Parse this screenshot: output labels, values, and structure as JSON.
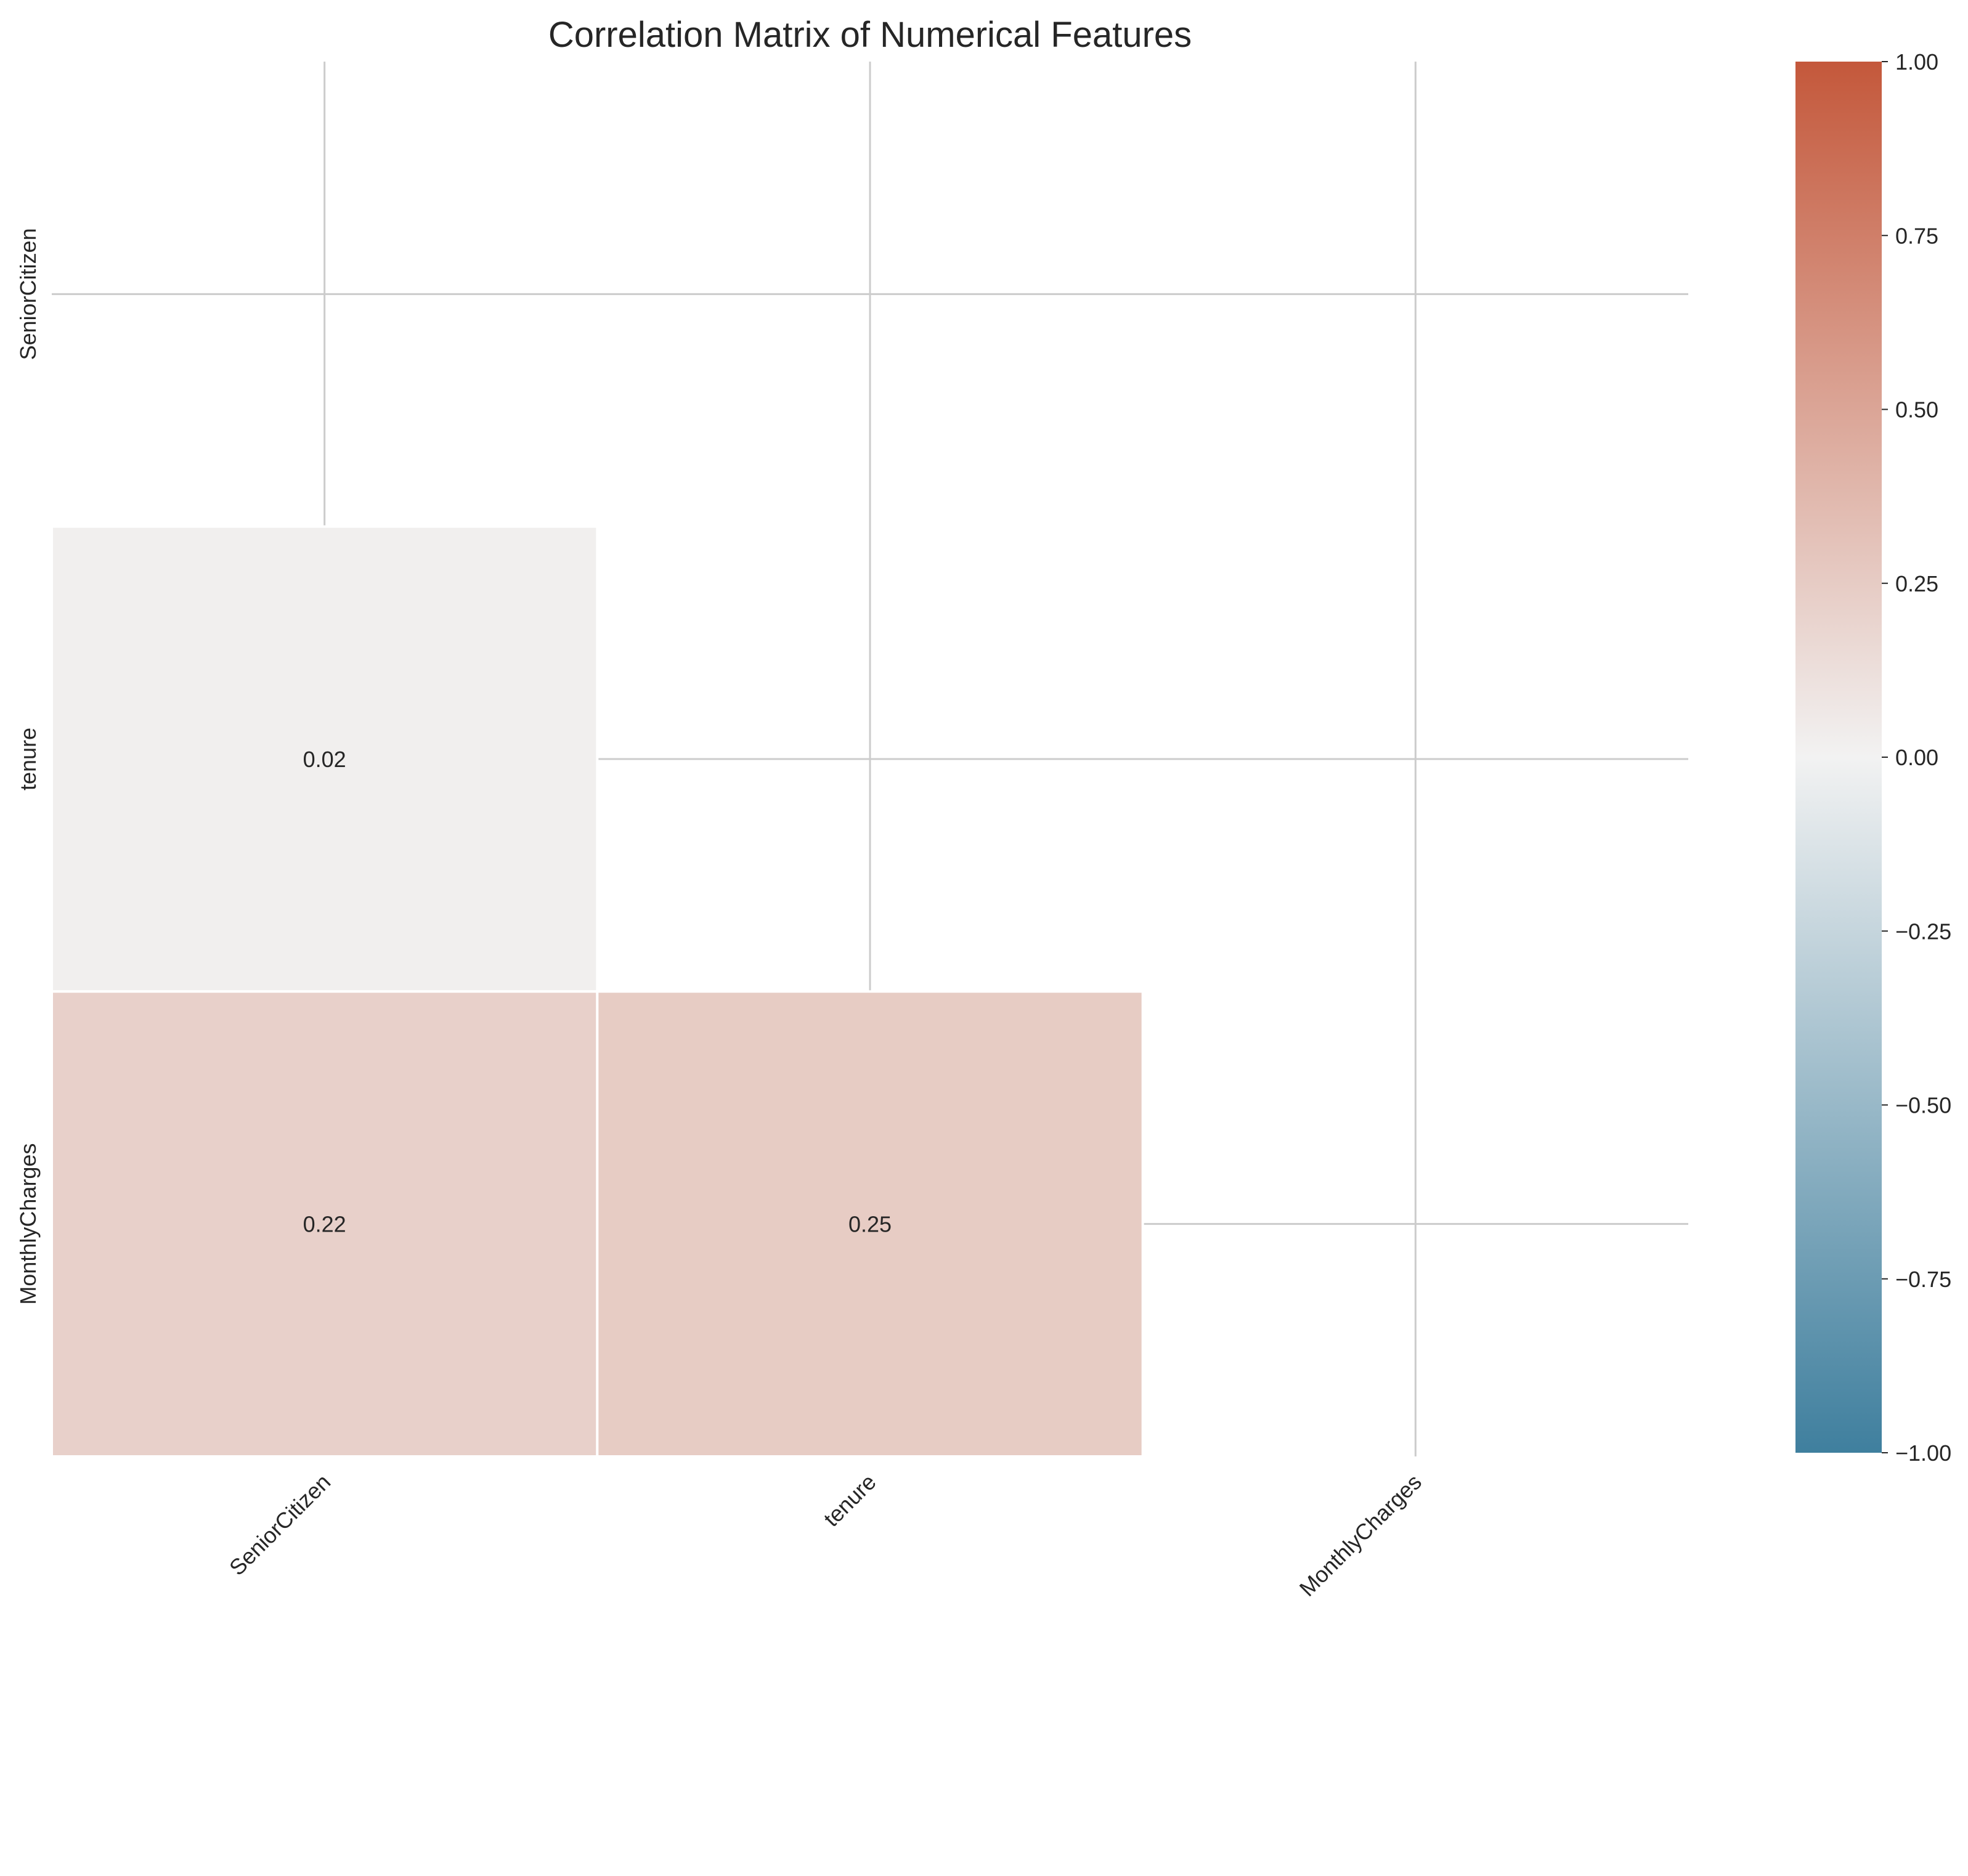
{
  "chart_data": {
    "type": "heatmap",
    "title": "Correlation Matrix of Numerical Features",
    "xlabel": "",
    "ylabel": "",
    "row_labels": [
      "SeniorCitizen",
      "tenure",
      "MonthlyCharges"
    ],
    "col_labels": [
      "SeniorCitizen",
      "tenure",
      "MonthlyCharges"
    ],
    "mask": "upper-triangle-including-diagonal",
    "cells": [
      {
        "row": "tenure",
        "col": "SeniorCitizen",
        "value": 0.02,
        "label": "0.02"
      },
      {
        "row": "MonthlyCharges",
        "col": "SeniorCitizen",
        "value": 0.22,
        "label": "0.22"
      },
      {
        "row": "MonthlyCharges",
        "col": "tenure",
        "value": 0.25,
        "label": "0.25"
      }
    ],
    "colorbar": {
      "range": [
        -1.0,
        1.0
      ],
      "ticks": [
        1.0,
        0.75,
        0.5,
        0.25,
        0.0,
        -0.25,
        -0.5,
        -0.75,
        -1.0
      ],
      "tick_labels": [
        "1.00",
        "0.75",
        "0.50",
        "0.25",
        "0.00",
        "−0.25",
        "−0.50",
        "−0.75",
        "−1.00"
      ],
      "colors": {
        "low": "#3f7f9e",
        "mid": "#f2f2f2",
        "high": "#c4583b"
      }
    },
    "grid": true
  }
}
